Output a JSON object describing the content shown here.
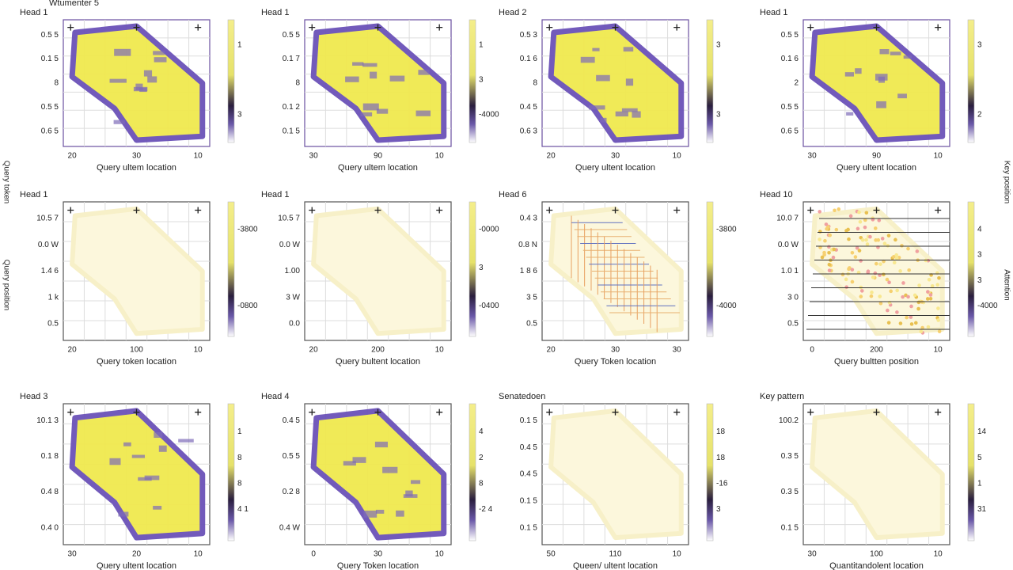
{
  "figure": {
    "title": "Wtumenter 5",
    "left_labels": [
      "Query token",
      "Query position"
    ],
    "right_labels": [
      "Key position",
      "Attention"
    ],
    "panels": [
      {
        "title": "Head 1",
        "style": "solid",
        "yticks": [
          "0.5 5",
          "0.1 5",
          "8",
          "0.5 5",
          "0.6 5"
        ],
        "xticks": [
          "20",
          "30",
          "10"
        ],
        "xlabel": "Query ultem location",
        "colorbar": [
          "1",
          "3"
        ]
      },
      {
        "title": "Head 1",
        "style": "solid",
        "yticks": [
          "0.5 5",
          "0.1 7",
          "8",
          "0.1 2",
          "0.1 5"
        ],
        "xticks": [
          "30",
          "90",
          "10"
        ],
        "xlabel": "Query ultem location",
        "colorbar": [
          "1",
          "3",
          "-4000"
        ]
      },
      {
        "title": "Head 2",
        "style": "solid",
        "yticks": [
          "0.5 3",
          "0.1 6",
          "8",
          "0.4 5",
          "0.6 3"
        ],
        "xticks": [
          "20",
          "30",
          "10"
        ],
        "xlabel": "Query ultent location",
        "colorbar": [
          "3",
          "3"
        ]
      },
      {
        "title": "Head 1",
        "style": "solid",
        "yticks": [
          "0.5 5",
          "0.1 6",
          "2",
          "0.5 5",
          "0.6 5"
        ],
        "xticks": [
          "30",
          "90",
          "10"
        ],
        "xlabel": "Query ultent location",
        "colorbar": [
          "3",
          "2"
        ]
      },
      {
        "title": "Head 1",
        "style": "pale",
        "yticks": [
          "10.5 7",
          "0.0 W",
          "1.4 6",
          "1 k",
          "0.5"
        ],
        "xticks": [
          "20",
          "100",
          "10"
        ],
        "xlabel": "Query token location",
        "colorbar": [
          "-3800",
          "-0800"
        ]
      },
      {
        "title": "Head 1",
        "style": "pale",
        "yticks": [
          "10.5 7",
          "0.0 W",
          "1.00",
          "3 W",
          "0.0"
        ],
        "xticks": [
          "20",
          "200",
          "10"
        ],
        "xlabel": "Query bultent location",
        "colorbar": [
          "-0000",
          "3",
          "-0400"
        ]
      },
      {
        "title": "Head 6",
        "style": "lines",
        "yticks": [
          "0.4 3",
          "0.8 N",
          "1 8 6",
          "3 5",
          "0.5"
        ],
        "xticks": [
          "20",
          "30",
          "30"
        ],
        "xlabel": "Query Token location",
        "colorbar": [
          "-3800",
          "-4000"
        ]
      },
      {
        "title": "Head 10",
        "style": "dots",
        "yticks": [
          "10.0 7",
          "0.0 W",
          "1.0 1",
          "3 0",
          "0.5"
        ],
        "xticks": [
          "0",
          "200",
          "10"
        ],
        "xlabel": "Query bultten position",
        "colorbar": [
          "4",
          "3",
          "3",
          "-4000"
        ]
      },
      {
        "title": "Head 3",
        "style": "solid",
        "yticks": [
          "10.1 3",
          "0.1 8",
          "0.4 8",
          "0.4 0"
        ],
        "xticks": [
          "30",
          "20",
          "10"
        ],
        "xlabel": "Query ultent location",
        "colorbar": [
          "1",
          "8",
          "8",
          "4 1"
        ]
      },
      {
        "title": "Head 4",
        "style": "solid",
        "yticks": [
          "0.4 5",
          "0.5 5",
          "0.2 8",
          "0.4 W"
        ],
        "xticks": [
          "0",
          "30",
          "10"
        ],
        "xlabel": "Query Token location",
        "colorbar": [
          "4",
          "2",
          "8",
          "-2 4"
        ]
      },
      {
        "title": "Senatedoen",
        "style": "pale",
        "yticks": [
          "0.1 5",
          "0.4 5",
          "0.4 5",
          "0.1 5",
          "0.1 5"
        ],
        "xticks": [
          "50",
          "110",
          "10"
        ],
        "xlabel": "Queen/ ultent location",
        "colorbar": [
          "18",
          "18",
          "-16",
          "3"
        ]
      },
      {
        "title": "Key pattern",
        "style": "pale",
        "yticks": [
          "100.2",
          "0.3 5",
          "0.3 5",
          "0.1 5"
        ],
        "xticks": [
          "30",
          "100",
          "10"
        ],
        "xlabel": "Quantitandolent location",
        "colorbar": [
          "14",
          "5",
          "1",
          "31"
        ]
      }
    ]
  }
}
